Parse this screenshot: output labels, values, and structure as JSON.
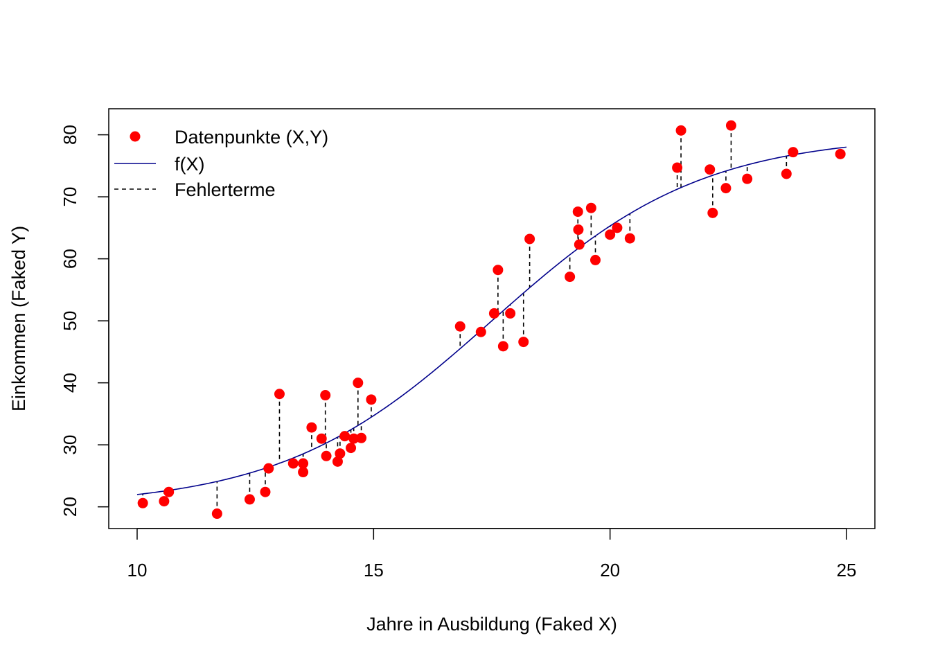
{
  "chart_data": {
    "type": "scatter",
    "xlabel": "Jahre in Ausbildung (Faked X)",
    "ylabel": "Einkommen (Faked Y)",
    "xlim": [
      9.4,
      25.6
    ],
    "ylim": [
      16.5,
      84.2
    ],
    "xticks": [
      10,
      15,
      20,
      25
    ],
    "yticks": [
      20,
      30,
      40,
      50,
      60,
      70,
      80
    ],
    "grid": false,
    "legend_position": "top-left",
    "legend": [
      {
        "label": "Datenpunkte (X,Y)",
        "kind": "point",
        "color": "#ff0000"
      },
      {
        "label": "f(X)",
        "kind": "line",
        "color": "#00008b"
      },
      {
        "label": "Fehlerterme",
        "kind": "dashed",
        "color": "#000000"
      }
    ],
    "curve": {
      "name": "f(X)",
      "model": "logistic",
      "L": 20,
      "U": 80,
      "x0": 17.5,
      "k": 0.45,
      "x_from": 10,
      "x_to": 25
    },
    "points": [
      [
        10.12,
        20.6
      ],
      [
        10.57,
        20.9
      ],
      [
        10.67,
        22.4
      ],
      [
        11.69,
        18.9
      ],
      [
        12.38,
        21.2
      ],
      [
        12.71,
        22.4
      ],
      [
        12.78,
        26.2
      ],
      [
        13.01,
        38.2
      ],
      [
        13.3,
        27.0
      ],
      [
        13.51,
        27.0
      ],
      [
        13.51,
        25.6
      ],
      [
        13.69,
        32.8
      ],
      [
        13.9,
        31.0
      ],
      [
        13.98,
        38.0
      ],
      [
        14.0,
        28.2
      ],
      [
        14.24,
        27.3
      ],
      [
        14.29,
        28.6
      ],
      [
        14.39,
        31.4
      ],
      [
        14.52,
        29.5
      ],
      [
        14.58,
        31.0
      ],
      [
        14.67,
        40.0
      ],
      [
        14.74,
        31.1
      ],
      [
        14.95,
        37.3
      ],
      [
        16.83,
        49.1
      ],
      [
        17.27,
        48.2
      ],
      [
        17.55,
        51.2
      ],
      [
        17.63,
        58.2
      ],
      [
        17.74,
        45.9
      ],
      [
        17.89,
        51.2
      ],
      [
        18.17,
        46.6
      ],
      [
        18.3,
        63.2
      ],
      [
        19.15,
        57.1
      ],
      [
        19.32,
        67.6
      ],
      [
        19.33,
        64.7
      ],
      [
        19.35,
        62.3
      ],
      [
        19.6,
        68.2
      ],
      [
        19.69,
        59.8
      ],
      [
        20.0,
        63.9
      ],
      [
        20.15,
        65.0
      ],
      [
        20.42,
        63.3
      ],
      [
        21.42,
        74.7
      ],
      [
        21.5,
        80.7
      ],
      [
        22.11,
        74.4
      ],
      [
        22.17,
        67.4
      ],
      [
        22.45,
        71.4
      ],
      [
        22.56,
        81.5
      ],
      [
        22.9,
        72.9
      ],
      [
        23.73,
        73.7
      ],
      [
        23.87,
        77.2
      ],
      [
        24.87,
        76.9
      ]
    ]
  }
}
